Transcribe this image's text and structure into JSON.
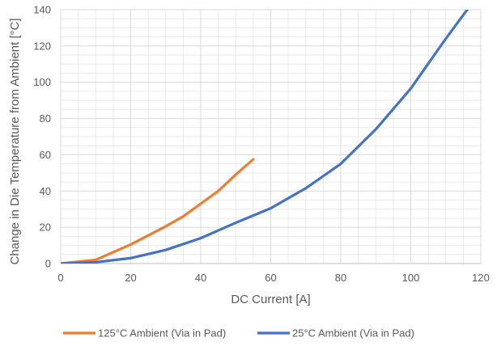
{
  "chart_data": {
    "type": "line",
    "title": "",
    "xlabel": "DC Current [A]",
    "ylabel": "Change in Die Temperature from Ambient [°C]",
    "xlim": [
      0,
      120
    ],
    "ylim": [
      0,
      140
    ],
    "x_ticks": [
      0,
      20,
      40,
      60,
      80,
      100,
      120
    ],
    "y_ticks": [
      0,
      20,
      40,
      60,
      80,
      100,
      120,
      140
    ],
    "grid": true,
    "grid_minor": true,
    "legend_position": "bottom",
    "series": [
      {
        "name": "125°C Ambient (Via in Pad)",
        "color": "#ed7d31",
        "x": [
          0,
          10,
          20,
          30,
          35,
          40,
          45,
          50,
          55
        ],
        "y": [
          0,
          2,
          10.5,
          20.5,
          26,
          33,
          40,
          49,
          57.5
        ]
      },
      {
        "name": "25°C Ambient (Via in Pad)",
        "color": "#4472c4",
        "x": [
          0,
          10,
          20,
          30,
          40,
          50,
          60,
          70,
          80,
          90,
          100,
          110,
          116.5
        ],
        "y": [
          0,
          0.7,
          3,
          7.5,
          14,
          22.5,
          30.5,
          41.5,
          55,
          74,
          96.5,
          124,
          141
        ]
      }
    ]
  }
}
